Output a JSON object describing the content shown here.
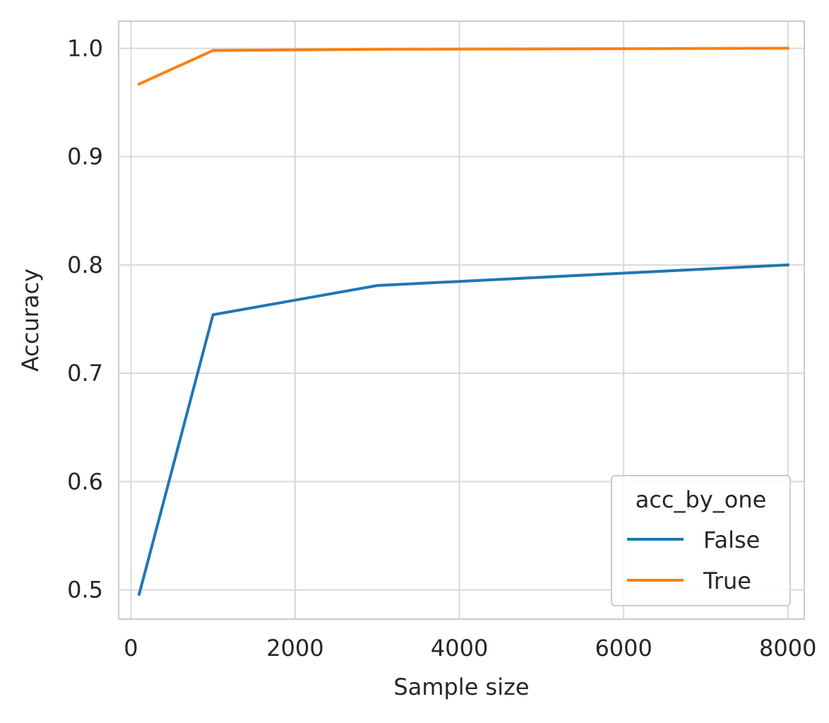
{
  "chart_data": {
    "type": "line",
    "title": "",
    "xlabel": "Sample size",
    "ylabel": "Accuracy",
    "xlim": [
      -150,
      8200
    ],
    "ylim": [
      0.473,
      1.025
    ],
    "xticks": [
      0,
      2000,
      4000,
      6000,
      8000
    ],
    "xtick_labels": [
      "0",
      "2000",
      "4000",
      "6000",
      "8000"
    ],
    "yticks": [
      0.5,
      0.6,
      0.7,
      0.8,
      0.9,
      1.0
    ],
    "ytick_labels": [
      "0.5",
      "0.6",
      "0.7",
      "0.8",
      "0.9",
      "1.0"
    ],
    "grid": true,
    "legend": {
      "title": "acc_by_one",
      "placement": "lower right"
    },
    "series": [
      {
        "name": "False",
        "color": "#1f77b4",
        "x": [
          100,
          1000,
          3000,
          8000
        ],
        "y": [
          0.496,
          0.754,
          0.781,
          0.8
        ]
      },
      {
        "name": "True",
        "color": "#ff7f0e",
        "x": [
          100,
          1000,
          3000,
          8000
        ],
        "y": [
          0.967,
          0.998,
          0.999,
          1.0
        ]
      }
    ]
  }
}
